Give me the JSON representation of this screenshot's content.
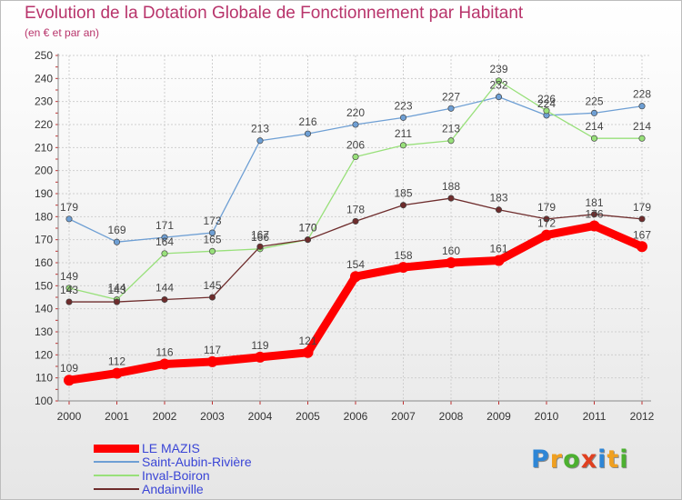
{
  "chart_data": {
    "type": "line",
    "title": "Evolution de la Dotation Globale de Fonctionnement par Habitant",
    "subtitle": "(en € et par an)",
    "x": [
      "2000",
      "2001",
      "2002",
      "2003",
      "2004",
      "2005",
      "2006",
      "2007",
      "2008",
      "2009",
      "2010",
      "2011",
      "2012"
    ],
    "ylim": [
      100,
      250
    ],
    "yticks": [
      "100",
      "110",
      "120",
      "130",
      "140",
      "150",
      "160",
      "170",
      "180",
      "190",
      "200",
      "210",
      "220",
      "230",
      "240",
      "250"
    ],
    "grid": true,
    "legend_position": "bottom-left",
    "series": [
      {
        "name": "LE MAZIS",
        "color": "#ff0000",
        "values": [
          109,
          112,
          116,
          117,
          119,
          121,
          154,
          158,
          160,
          161,
          172,
          176,
          167
        ]
      },
      {
        "name": "Saint-Aubin-Rivière",
        "color": "#6e9fd4",
        "values": [
          179,
          169,
          171,
          173,
          213,
          216,
          220,
          223,
          227,
          232,
          224,
          225,
          228
        ]
      },
      {
        "name": "Inval-Boiron",
        "color": "#98e07a",
        "values": [
          149,
          144,
          164,
          165,
          166,
          170,
          206,
          211,
          213,
          239,
          226,
          214,
          214
        ]
      },
      {
        "name": "Andainville",
        "color": "#6e2c2c",
        "values": [
          143,
          143,
          144,
          145,
          167,
          170,
          178,
          185,
          188,
          183,
          179,
          181,
          179
        ]
      }
    ]
  },
  "logo": {
    "letters": [
      "P",
      "r",
      "o",
      "x",
      "i",
      "t",
      "i"
    ],
    "colors": [
      "#2e86d6",
      "#f0a020",
      "#4cb030",
      "#e04020",
      "#2e86d6",
      "#f0a020",
      "#4cb030"
    ]
  }
}
